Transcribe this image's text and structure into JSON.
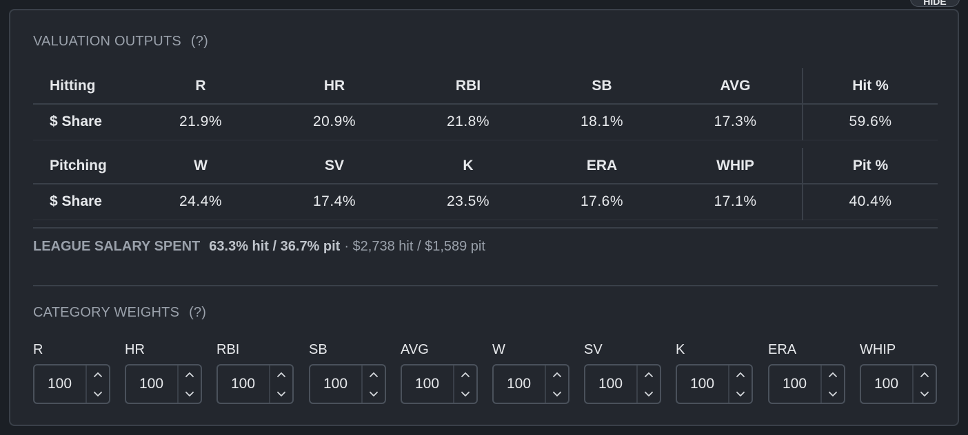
{
  "hide_button": "HIDE",
  "valuation": {
    "title": "VALUATION OUTPUTS",
    "help": "(?)",
    "hitting": {
      "headers": [
        "Hitting",
        "R",
        "HR",
        "RBI",
        "SB",
        "AVG",
        "Hit %"
      ],
      "row": [
        "$ Share",
        "21.9%",
        "20.9%",
        "21.8%",
        "18.1%",
        "17.3%",
        "59.6%"
      ]
    },
    "pitching": {
      "headers": [
        "Pitching",
        "W",
        "SV",
        "K",
        "ERA",
        "WHIP",
        "Pit %"
      ],
      "row": [
        "$ Share",
        "24.4%",
        "17.4%",
        "23.5%",
        "17.6%",
        "17.1%",
        "40.4%"
      ]
    }
  },
  "salary": {
    "label": "LEAGUE SALARY SPENT",
    "ratio": "63.3% hit / 36.7% pit",
    "amounts": "· $2,738 hit / $1,589 pit"
  },
  "weights": {
    "title": "CATEGORY WEIGHTS",
    "help": "(?)",
    "items": [
      {
        "label": "R",
        "value": "100"
      },
      {
        "label": "HR",
        "value": "100"
      },
      {
        "label": "RBI",
        "value": "100"
      },
      {
        "label": "SB",
        "value": "100"
      },
      {
        "label": "AVG",
        "value": "100"
      },
      {
        "label": "W",
        "value": "100"
      },
      {
        "label": "SV",
        "value": "100"
      },
      {
        "label": "K",
        "value": "100"
      },
      {
        "label": "ERA",
        "value": "100"
      },
      {
        "label": "WHIP",
        "value": "100"
      }
    ]
  }
}
